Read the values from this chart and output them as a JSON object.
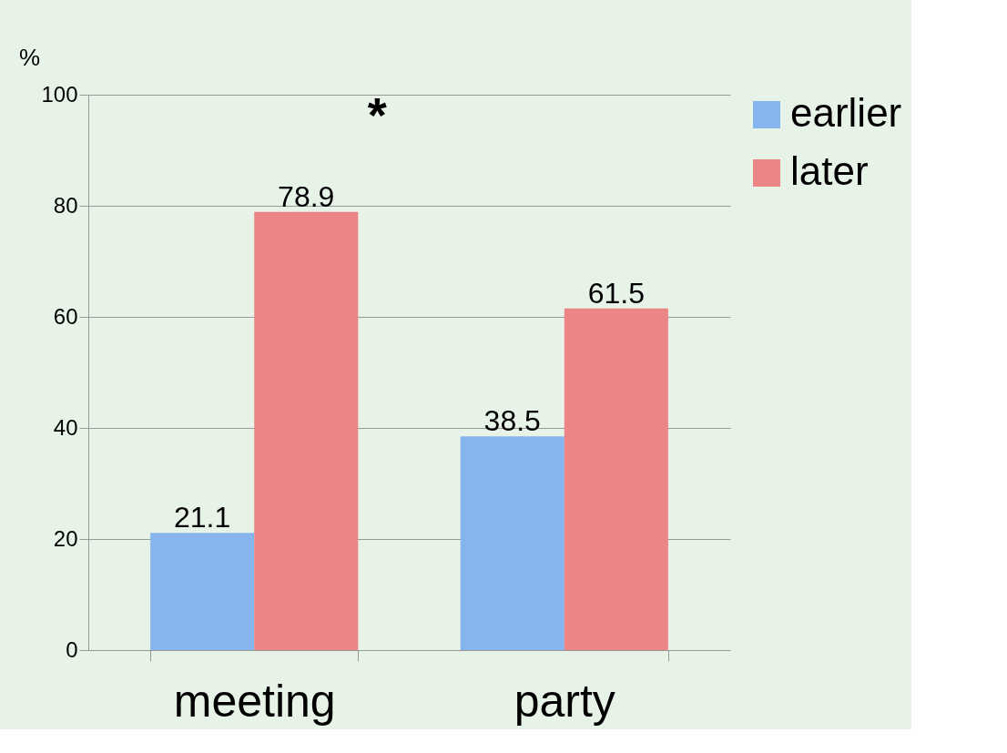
{
  "chart_data": {
    "type": "bar",
    "ylabel": "%",
    "categories": [
      "meeting",
      "party"
    ],
    "series": [
      {
        "name": "earlier",
        "color": "#86b4ee",
        "values": [
          21.1,
          38.5
        ]
      },
      {
        "name": "later",
        "color": "#ec8585",
        "values": [
          78.9,
          61.5
        ]
      }
    ],
    "ylim": [
      0,
      100
    ],
    "yticks": [
      0,
      20,
      40,
      60,
      80,
      100
    ],
    "grid": "y",
    "legend": "right",
    "data_labels": true,
    "annotations": [
      "*"
    ]
  }
}
